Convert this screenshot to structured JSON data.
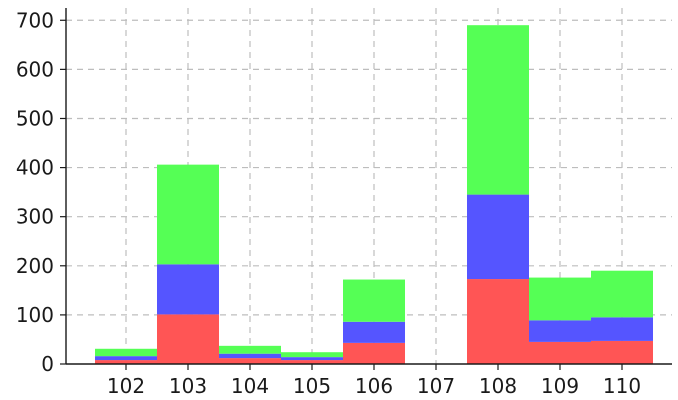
{
  "chart_data": {
    "type": "bar",
    "stacked": true,
    "categories": [
      "102",
      "103",
      "104",
      "105",
      "106",
      "107",
      "108",
      "109",
      "110"
    ],
    "series": [
      {
        "color": "#ff5555",
        "values": [
          8,
          101,
          12,
          8,
          43,
          0,
          173,
          45,
          47
        ]
      },
      {
        "color": "#5555ff",
        "values": [
          8,
          102,
          9,
          6,
          43,
          0,
          172,
          44,
          48
        ]
      },
      {
        "color": "#55ff55",
        "values": [
          15,
          203,
          16,
          10,
          86,
          0,
          345,
          87,
          95
        ]
      }
    ],
    "ylim": [
      0,
      725
    ],
    "yticks": [
      0,
      100,
      200,
      300,
      400,
      500,
      600,
      700
    ],
    "grid": true,
    "title": "",
    "xlabel": "",
    "ylabel": ""
  }
}
